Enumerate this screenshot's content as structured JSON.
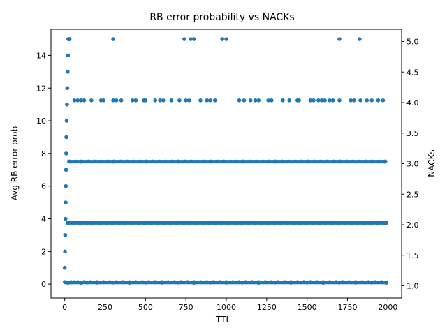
{
  "chart_data": {
    "type": "scatter",
    "title": "RB error probability vs NACKs",
    "xlabel": "TTI",
    "ylabel": "Avg RB error prob",
    "y2label": "NACKs",
    "xlim": [
      -85,
      2085
    ],
    "ylim": [
      -0.85,
      15.6
    ],
    "y2lim": [
      0.8,
      5.2
    ],
    "xticks": [
      0,
      250,
      500,
      750,
      1000,
      1250,
      1500,
      1750,
      2000
    ],
    "yticks": [
      0,
      2,
      4,
      6,
      8,
      10,
      12,
      14
    ],
    "y2ticks": [
      "1.0",
      "1.5",
      "2.0",
      "2.5",
      "3.0",
      "3.5",
      "4.0",
      "4.5",
      "5.0"
    ],
    "grid": false,
    "legend": "none",
    "marker_color": "#1f77b4",
    "series": [
      {
        "points": [
          [
            0,
            1
          ],
          [
            2,
            2
          ],
          [
            3,
            3
          ],
          [
            5,
            4
          ],
          [
            6,
            5
          ],
          [
            7,
            6
          ],
          [
            8,
            7
          ],
          [
            9,
            8
          ],
          [
            10,
            9
          ],
          [
            12,
            10
          ],
          [
            14,
            11
          ],
          [
            16,
            12
          ],
          [
            18,
            13
          ],
          [
            20,
            14
          ],
          [
            22,
            15
          ],
          [
            24,
            15
          ],
          [
            26,
            15
          ],
          [
            28,
            15
          ],
          [
            30,
            15
          ],
          [
            10,
            0.1
          ],
          [
            20,
            0.08
          ],
          [
            40,
            0.1
          ],
          [
            60,
            0.12
          ],
          [
            100,
            0.08
          ],
          [
            140,
            0.1
          ],
          [
            200,
            0.09
          ],
          [
            300,
            0.1
          ],
          [
            400,
            0.08
          ],
          [
            500,
            0.1
          ],
          [
            600,
            0.09
          ],
          [
            700,
            0.1
          ],
          [
            800,
            0.08
          ],
          [
            900,
            0.1
          ],
          [
            1000,
            0.09
          ],
          [
            1100,
            0.1
          ],
          [
            1200,
            0.08
          ],
          [
            1300,
            0.1
          ],
          [
            1400,
            0.09
          ],
          [
            1500,
            0.1
          ],
          [
            1600,
            0.08
          ],
          [
            1700,
            0.1
          ],
          [
            1800,
            0.09
          ],
          [
            1900,
            0.1
          ],
          [
            1990,
            0.08
          ],
          [
            20,
            3.75
          ],
          [
            100,
            3.75
          ],
          [
            300,
            3.75
          ],
          [
            500,
            3.75
          ],
          [
            700,
            3.75
          ],
          [
            900,
            3.75
          ],
          [
            1100,
            3.75
          ],
          [
            1300,
            3.75
          ],
          [
            1500,
            3.75
          ],
          [
            1700,
            3.75
          ],
          [
            1900,
            3.75
          ],
          [
            1990,
            3.75
          ],
          [
            30,
            7.5
          ],
          [
            100,
            7.5
          ],
          [
            300,
            7.5
          ],
          [
            500,
            7.5
          ],
          [
            700,
            7.5
          ],
          [
            900,
            7.5
          ],
          [
            1100,
            7.5
          ],
          [
            1300,
            7.5
          ],
          [
            1500,
            7.5
          ],
          [
            1700,
            7.5
          ],
          [
            1900,
            7.5
          ],
          [
            1980,
            7.5
          ],
          [
            60,
            11.25
          ],
          [
            80,
            11.25
          ],
          [
            100,
            11.25
          ],
          [
            120,
            11.25
          ],
          [
            165,
            11.25
          ],
          [
            225,
            11.25
          ],
          [
            240,
            11.25
          ],
          [
            300,
            11.25
          ],
          [
            320,
            11.25
          ],
          [
            350,
            11.25
          ],
          [
            420,
            11.25
          ],
          [
            440,
            11.25
          ],
          [
            490,
            11.25
          ],
          [
            500,
            11.25
          ],
          [
            560,
            11.25
          ],
          [
            590,
            11.25
          ],
          [
            610,
            11.25
          ],
          [
            660,
            11.25
          ],
          [
            710,
            11.25
          ],
          [
            750,
            11.25
          ],
          [
            770,
            11.25
          ],
          [
            840,
            11.25
          ],
          [
            880,
            11.25
          ],
          [
            900,
            11.25
          ],
          [
            930,
            11.25
          ],
          [
            1080,
            11.25
          ],
          [
            1110,
            11.25
          ],
          [
            1150,
            11.25
          ],
          [
            1180,
            11.25
          ],
          [
            1200,
            11.25
          ],
          [
            1260,
            11.25
          ],
          [
            1280,
            11.25
          ],
          [
            1350,
            11.25
          ],
          [
            1390,
            11.25
          ],
          [
            1440,
            11.25
          ],
          [
            1450,
            11.25
          ],
          [
            1520,
            11.25
          ],
          [
            1540,
            11.25
          ],
          [
            1570,
            11.25
          ],
          [
            1590,
            11.25
          ],
          [
            1610,
            11.25
          ],
          [
            1640,
            11.25
          ],
          [
            1660,
            11.25
          ],
          [
            1700,
            11.25
          ],
          [
            1770,
            11.25
          ],
          [
            1790,
            11.25
          ],
          [
            1830,
            11.25
          ],
          [
            1870,
            11.25
          ],
          [
            1900,
            11.25
          ],
          [
            1940,
            11.25
          ],
          [
            1970,
            11.25
          ],
          [
            300,
            15
          ],
          [
            740,
            15
          ],
          [
            780,
            15
          ],
          [
            800,
            15
          ],
          [
            975,
            15
          ],
          [
            1000,
            15
          ],
          [
            1700,
            15
          ],
          [
            1825,
            15
          ]
        ],
        "dense_rows": [
          {
            "y": 0.1,
            "x_from": 0,
            "x_to": 1995
          },
          {
            "y": 3.75,
            "x_from": 15,
            "x_to": 1995
          },
          {
            "y": 7.5,
            "x_from": 25,
            "x_to": 1985
          }
        ]
      }
    ]
  }
}
